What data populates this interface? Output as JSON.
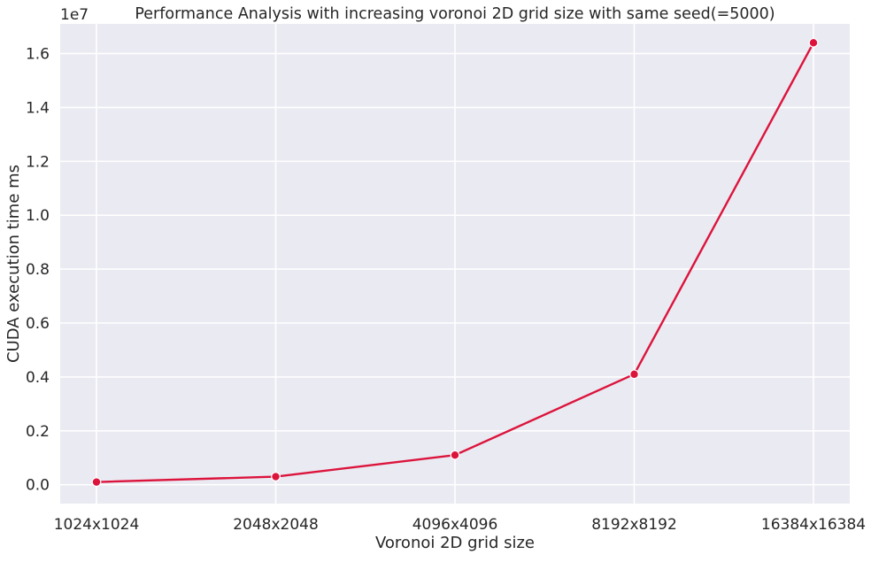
{
  "chart_data": {
    "type": "line",
    "title": "Performance Analysis with increasing voronoi 2D grid size with same seed(=5000)",
    "xlabel": "Voronoi 2D grid size",
    "ylabel": "CUDA execution time ms",
    "offset_label": "1e7",
    "categories": [
      "1024x1024",
      "2048x2048",
      "4096x4096",
      "8192x8192",
      "16384x16384"
    ],
    "series": [
      {
        "values": [
          0.01,
          0.03,
          0.11,
          0.41,
          1.64
        ]
      }
    ],
    "ylim": [
      -0.07,
      1.71
    ],
    "yticks": [
      0.0,
      0.2,
      0.4,
      0.6,
      0.8,
      1.0,
      1.2,
      1.4,
      1.6
    ],
    "ytick_labels": [
      "0.0",
      "0.2",
      "0.4",
      "0.6",
      "0.8",
      "1.0",
      "1.2",
      "1.4",
      "1.6"
    ],
    "grid": true,
    "colors": {
      "line": "#dc143c",
      "background": "#eaeaf2",
      "grid": "#ffffff"
    }
  }
}
